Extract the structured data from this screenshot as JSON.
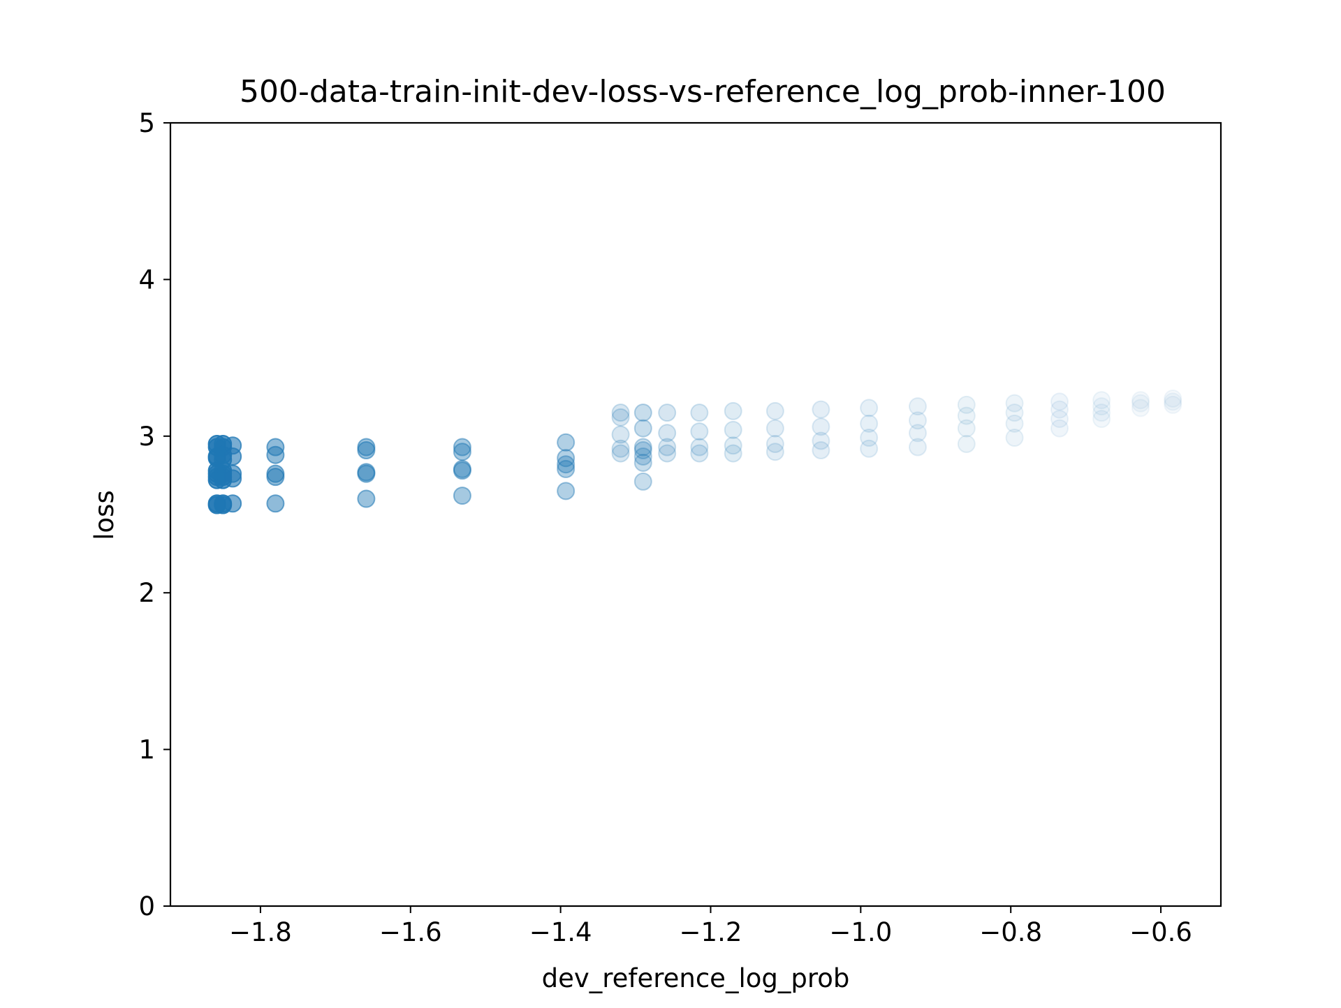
{
  "chart_data": {
    "type": "scatter",
    "title": "500-data-train-init-dev-loss-vs-reference_log_prob-inner-100",
    "xlabel": "dev_reference_log_prob",
    "ylabel": "loss",
    "xlim": [
      -1.92,
      -0.52
    ],
    "ylim": [
      0,
      5
    ],
    "xticks": [
      -1.8,
      -1.6,
      -1.4,
      -1.2,
      -1.0,
      -0.8,
      -0.6
    ],
    "xtick_labels": [
      "−1.8",
      "−1.6",
      "−1.4",
      "−1.2",
      "−1.0",
      "−0.8",
      "−0.6"
    ],
    "yticks": [
      0,
      1,
      2,
      3,
      4,
      5
    ],
    "ytick_labels": [
      "0",
      "1",
      "2",
      "3",
      "4",
      "5"
    ],
    "grid": false,
    "marker_color": "#1f77b4",
    "points": [
      {
        "x": -1.858,
        "y": 2.95,
        "opacity": 0.75
      },
      {
        "x": -1.858,
        "y": 2.93,
        "opacity": 0.75
      },
      {
        "x": -1.858,
        "y": 2.87,
        "opacity": 0.75
      },
      {
        "x": -1.858,
        "y": 2.86,
        "opacity": 0.75
      },
      {
        "x": -1.858,
        "y": 2.78,
        "opacity": 0.75
      },
      {
        "x": -1.858,
        "y": 2.76,
        "opacity": 0.75
      },
      {
        "x": -1.858,
        "y": 2.74,
        "opacity": 0.75
      },
      {
        "x": -1.858,
        "y": 2.72,
        "opacity": 0.75
      },
      {
        "x": -1.858,
        "y": 2.57,
        "opacity": 0.75
      },
      {
        "x": -1.858,
        "y": 2.56,
        "opacity": 0.75
      },
      {
        "x": -1.85,
        "y": 2.95,
        "opacity": 0.75
      },
      {
        "x": -1.85,
        "y": 2.93,
        "opacity": 0.75
      },
      {
        "x": -1.85,
        "y": 2.88,
        "opacity": 0.75
      },
      {
        "x": -1.85,
        "y": 2.85,
        "opacity": 0.75
      },
      {
        "x": -1.85,
        "y": 2.78,
        "opacity": 0.75
      },
      {
        "x": -1.85,
        "y": 2.76,
        "opacity": 0.75
      },
      {
        "x": -1.85,
        "y": 2.74,
        "opacity": 0.75
      },
      {
        "x": -1.85,
        "y": 2.72,
        "opacity": 0.75
      },
      {
        "x": -1.85,
        "y": 2.57,
        "opacity": 0.75
      },
      {
        "x": -1.85,
        "y": 2.56,
        "opacity": 0.75
      },
      {
        "x": -1.837,
        "y": 2.94,
        "opacity": 0.6
      },
      {
        "x": -1.837,
        "y": 2.87,
        "opacity": 0.6
      },
      {
        "x": -1.837,
        "y": 2.76,
        "opacity": 0.6
      },
      {
        "x": -1.837,
        "y": 2.73,
        "opacity": 0.6
      },
      {
        "x": -1.837,
        "y": 2.57,
        "opacity": 0.6
      },
      {
        "x": -1.78,
        "y": 2.93,
        "opacity": 0.5
      },
      {
        "x": -1.78,
        "y": 2.88,
        "opacity": 0.5
      },
      {
        "x": -1.78,
        "y": 2.76,
        "opacity": 0.5
      },
      {
        "x": -1.78,
        "y": 2.74,
        "opacity": 0.5
      },
      {
        "x": -1.78,
        "y": 2.57,
        "opacity": 0.5
      },
      {
        "x": -1.659,
        "y": 2.93,
        "opacity": 0.45
      },
      {
        "x": -1.659,
        "y": 2.91,
        "opacity": 0.45
      },
      {
        "x": -1.659,
        "y": 2.77,
        "opacity": 0.45
      },
      {
        "x": -1.659,
        "y": 2.76,
        "opacity": 0.45
      },
      {
        "x": -1.659,
        "y": 2.6,
        "opacity": 0.45
      },
      {
        "x": -1.531,
        "y": 2.93,
        "opacity": 0.4
      },
      {
        "x": -1.531,
        "y": 2.9,
        "opacity": 0.4
      },
      {
        "x": -1.531,
        "y": 2.79,
        "opacity": 0.4
      },
      {
        "x": -1.531,
        "y": 2.78,
        "opacity": 0.4
      },
      {
        "x": -1.531,
        "y": 2.62,
        "opacity": 0.4
      },
      {
        "x": -1.393,
        "y": 2.96,
        "opacity": 0.35
      },
      {
        "x": -1.393,
        "y": 2.86,
        "opacity": 0.35
      },
      {
        "x": -1.393,
        "y": 2.82,
        "opacity": 0.35
      },
      {
        "x": -1.393,
        "y": 2.79,
        "opacity": 0.35
      },
      {
        "x": -1.393,
        "y": 2.65,
        "opacity": 0.35
      },
      {
        "x": -1.32,
        "y": 3.15,
        "opacity": 0.18
      },
      {
        "x": -1.32,
        "y": 3.12,
        "opacity": 0.18
      },
      {
        "x": -1.32,
        "y": 3.01,
        "opacity": 0.18
      },
      {
        "x": -1.32,
        "y": 2.92,
        "opacity": 0.18
      },
      {
        "x": -1.32,
        "y": 2.89,
        "opacity": 0.18
      },
      {
        "x": -1.29,
        "y": 3.15,
        "opacity": 0.25
      },
      {
        "x": -1.29,
        "y": 3.05,
        "opacity": 0.25
      },
      {
        "x": -1.29,
        "y": 2.93,
        "opacity": 0.25
      },
      {
        "x": -1.29,
        "y": 2.91,
        "opacity": 0.25
      },
      {
        "x": -1.29,
        "y": 2.87,
        "opacity": 0.25
      },
      {
        "x": -1.29,
        "y": 2.83,
        "opacity": 0.25
      },
      {
        "x": -1.29,
        "y": 2.71,
        "opacity": 0.25
      },
      {
        "x": -1.258,
        "y": 3.15,
        "opacity": 0.18
      },
      {
        "x": -1.258,
        "y": 3.02,
        "opacity": 0.18
      },
      {
        "x": -1.258,
        "y": 2.93,
        "opacity": 0.18
      },
      {
        "x": -1.258,
        "y": 2.89,
        "opacity": 0.18
      },
      {
        "x": -1.215,
        "y": 3.15,
        "opacity": 0.16
      },
      {
        "x": -1.215,
        "y": 3.03,
        "opacity": 0.16
      },
      {
        "x": -1.215,
        "y": 2.93,
        "opacity": 0.16
      },
      {
        "x": -1.215,
        "y": 2.89,
        "opacity": 0.16
      },
      {
        "x": -1.17,
        "y": 3.16,
        "opacity": 0.14
      },
      {
        "x": -1.17,
        "y": 3.04,
        "opacity": 0.14
      },
      {
        "x": -1.17,
        "y": 2.94,
        "opacity": 0.14
      },
      {
        "x": -1.17,
        "y": 2.89,
        "opacity": 0.14
      },
      {
        "x": -1.114,
        "y": 3.16,
        "opacity": 0.13
      },
      {
        "x": -1.114,
        "y": 3.05,
        "opacity": 0.13
      },
      {
        "x": -1.114,
        "y": 2.95,
        "opacity": 0.13
      },
      {
        "x": -1.114,
        "y": 2.9,
        "opacity": 0.13
      },
      {
        "x": -1.053,
        "y": 3.17,
        "opacity": 0.12
      },
      {
        "x": -1.053,
        "y": 3.06,
        "opacity": 0.12
      },
      {
        "x": -1.053,
        "y": 2.97,
        "opacity": 0.12
      },
      {
        "x": -1.053,
        "y": 2.91,
        "opacity": 0.12
      },
      {
        "x": -0.989,
        "y": 3.18,
        "opacity": 0.11
      },
      {
        "x": -0.989,
        "y": 3.08,
        "opacity": 0.11
      },
      {
        "x": -0.989,
        "y": 2.99,
        "opacity": 0.11
      },
      {
        "x": -0.989,
        "y": 2.92,
        "opacity": 0.11
      },
      {
        "x": -0.924,
        "y": 3.19,
        "opacity": 0.1
      },
      {
        "x": -0.924,
        "y": 3.1,
        "opacity": 0.1
      },
      {
        "x": -0.924,
        "y": 3.02,
        "opacity": 0.1
      },
      {
        "x": -0.924,
        "y": 2.93,
        "opacity": 0.1
      },
      {
        "x": -0.859,
        "y": 3.2,
        "opacity": 0.09
      },
      {
        "x": -0.859,
        "y": 3.13,
        "opacity": 0.09
      },
      {
        "x": -0.859,
        "y": 3.05,
        "opacity": 0.09
      },
      {
        "x": -0.859,
        "y": 2.95,
        "opacity": 0.09
      },
      {
        "x": -0.795,
        "y": 3.21,
        "opacity": 0.08
      },
      {
        "x": -0.795,
        "y": 3.15,
        "opacity": 0.08
      },
      {
        "x": -0.795,
        "y": 3.08,
        "opacity": 0.08
      },
      {
        "x": -0.795,
        "y": 2.99,
        "opacity": 0.08
      },
      {
        "x": -0.735,
        "y": 3.22,
        "opacity": 0.07
      },
      {
        "x": -0.735,
        "y": 3.17,
        "opacity": 0.07
      },
      {
        "x": -0.735,
        "y": 3.11,
        "opacity": 0.07
      },
      {
        "x": -0.735,
        "y": 3.05,
        "opacity": 0.07
      },
      {
        "x": -0.679,
        "y": 3.23,
        "opacity": 0.06
      },
      {
        "x": -0.679,
        "y": 3.19,
        "opacity": 0.06
      },
      {
        "x": -0.679,
        "y": 3.15,
        "opacity": 0.06
      },
      {
        "x": -0.679,
        "y": 3.11,
        "opacity": 0.06
      },
      {
        "x": -0.627,
        "y": 3.23,
        "opacity": 0.05
      },
      {
        "x": -0.627,
        "y": 3.21,
        "opacity": 0.05
      },
      {
        "x": -0.627,
        "y": 3.18,
        "opacity": 0.05
      },
      {
        "x": -0.584,
        "y": 3.24,
        "opacity": 0.05
      },
      {
        "x": -0.584,
        "y": 3.22,
        "opacity": 0.05
      },
      {
        "x": -0.584,
        "y": 3.2,
        "opacity": 0.05
      }
    ]
  }
}
